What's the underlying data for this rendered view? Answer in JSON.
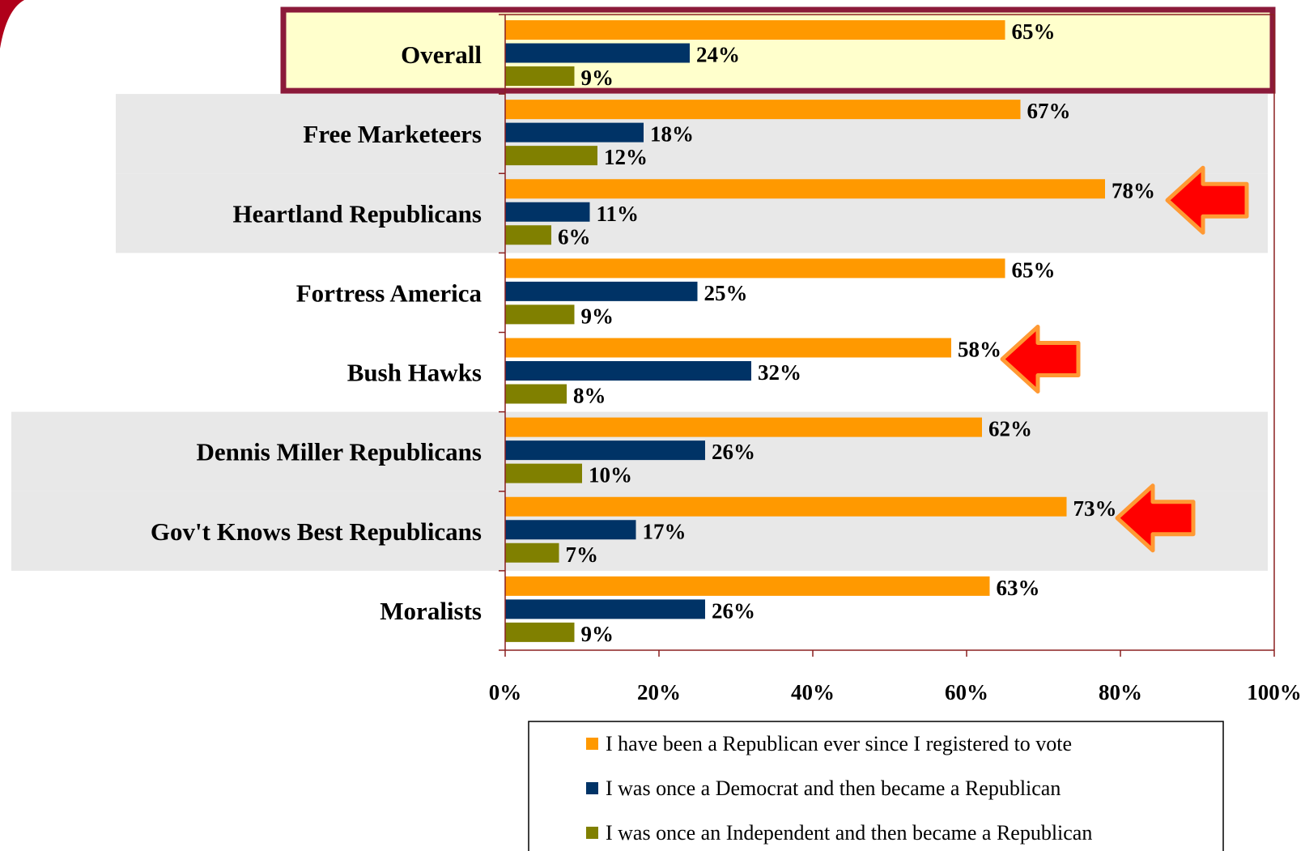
{
  "chart_data": {
    "type": "bar",
    "orientation": "horizontal",
    "categories": [
      "Overall",
      "Free Marketeers",
      "Heartland Republicans",
      "Fortress America",
      "Bush Hawks",
      "Dennis Miller Republicans",
      "Gov't Knows Best Republicans",
      "Moralists"
    ],
    "series": [
      {
        "name": "I have been a Republican ever since I registered to vote",
        "color": "#FF9900",
        "values": [
          65,
          67,
          78,
          65,
          58,
          62,
          73,
          63
        ]
      },
      {
        "name": "I was once a Democrat and then became a Republican",
        "color": "#003366",
        "values": [
          24,
          18,
          11,
          25,
          32,
          26,
          17,
          26
        ]
      },
      {
        "name": "I was once an Independent and then became a Republican",
        "color": "#808000",
        "values": [
          9,
          12,
          6,
          9,
          8,
          10,
          7,
          9
        ]
      }
    ],
    "value_suffix": "%",
    "xlim": [
      0,
      100
    ],
    "x_ticks": [
      "0%",
      "20%",
      "40%",
      "60%",
      "80%",
      "100%"
    ],
    "grid": false,
    "legend_position": "bottom-right",
    "highlighted_category": "Overall",
    "shaded_categories": [
      "Free Marketeers",
      "Heartland Republicans",
      "Dennis Miller Republicans",
      "Gov't Knows Best Republicans"
    ],
    "arrow_callouts": [
      "Heartland Republicans",
      "Bush Hawks",
      "Gov't Knows Best Republicans"
    ]
  },
  "colors": {
    "highlight_fill": "#FFFFCC",
    "highlight_border": "#8B1A3A",
    "shade_fill": "#E8E8E8",
    "axis": "#8B2020",
    "arrow_fill": "#FF0000",
    "arrow_stroke": "#FF9933",
    "corner_accent": "#B0001A"
  }
}
